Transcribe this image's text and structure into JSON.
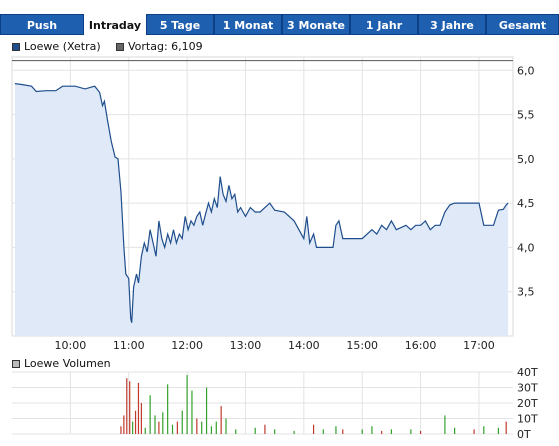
{
  "tabs": [
    {
      "label": "Push",
      "active": false
    },
    {
      "label": "Intraday",
      "active": true
    },
    {
      "label": "5 Tage",
      "active": false
    },
    {
      "label": "1 Monat",
      "active": false
    },
    {
      "label": "3 Monate",
      "active": false
    },
    {
      "label": "1 Jahr",
      "active": false
    },
    {
      "label": "3 Jahre",
      "active": false
    },
    {
      "label": "Gesamt",
      "active": false
    }
  ],
  "legend": {
    "series_label": "Loewe (Xetra)",
    "prev_label": "Vortag: 6,109",
    "volume_label": "Loewe Volumen"
  },
  "colors": {
    "line": "#1f4e8c",
    "area": "#dfe9f7",
    "prev_line": "#555555",
    "grid": "#e3e3e3",
    "vol_up": "#33a02c",
    "vol_down": "#c0392b",
    "tab_bg": "#1f5fb0"
  },
  "chart_data": [
    {
      "type": "area",
      "series": [
        {
          "name": "Loewe (Xetra)",
          "points": [
            [
              "09:03",
              5.85
            ],
            [
              "09:10",
              5.84
            ],
            [
              "09:20",
              5.82
            ],
            [
              "09:25",
              5.76
            ],
            [
              "09:35",
              5.77
            ],
            [
              "09:45",
              5.77
            ],
            [
              "09:52",
              5.82
            ],
            [
              "10:05",
              5.82
            ],
            [
              "10:15",
              5.79
            ],
            [
              "10:25",
              5.82
            ],
            [
              "10:30",
              5.75
            ],
            [
              "10:33",
              5.6
            ],
            [
              "10:35",
              5.65
            ],
            [
              "10:38",
              5.45
            ],
            [
              "10:42",
              5.2
            ],
            [
              "10:46",
              5.02
            ],
            [
              "10:49",
              5.0
            ],
            [
              "10:52",
              4.62
            ],
            [
              "10:55",
              4.0
            ],
            [
              "10:57",
              3.7
            ],
            [
              "11:00",
              3.65
            ],
            [
              "11:02",
              3.2
            ],
            [
              "11:03",
              3.15
            ],
            [
              "11:05",
              3.55
            ],
            [
              "11:08",
              3.7
            ],
            [
              "11:10",
              3.6
            ],
            [
              "11:13",
              3.9
            ],
            [
              "11:16",
              4.05
            ],
            [
              "11:19",
              3.95
            ],
            [
              "11:22",
              4.2
            ],
            [
              "11:25",
              4.05
            ],
            [
              "11:28",
              3.9
            ],
            [
              "11:31",
              4.3
            ],
            [
              "11:34",
              4.1
            ],
            [
              "11:37",
              4.0
            ],
            [
              "11:40",
              4.15
            ],
            [
              "11:43",
              4.05
            ],
            [
              "11:46",
              4.2
            ],
            [
              "11:49",
              4.05
            ],
            [
              "11:52",
              4.15
            ],
            [
              "11:55",
              4.1
            ],
            [
              "11:58",
              4.35
            ],
            [
              "12:01",
              4.2
            ],
            [
              "12:04",
              4.3
            ],
            [
              "12:07",
              4.25
            ],
            [
              "12:10",
              4.35
            ],
            [
              "12:13",
              4.4
            ],
            [
              "12:16",
              4.25
            ],
            [
              "12:19",
              4.38
            ],
            [
              "12:22",
              4.5
            ],
            [
              "12:25",
              4.4
            ],
            [
              "12:28",
              4.55
            ],
            [
              "12:31",
              4.45
            ],
            [
              "12:34",
              4.8
            ],
            [
              "12:37",
              4.6
            ],
            [
              "12:40",
              4.52
            ],
            [
              "12:43",
              4.7
            ],
            [
              "12:46",
              4.55
            ],
            [
              "12:49",
              4.6
            ],
            [
              "12:52",
              4.4
            ],
            [
              "12:55",
              4.45
            ],
            [
              "13:00",
              4.35
            ],
            [
              "13:05",
              4.45
            ],
            [
              "13:10",
              4.4
            ],
            [
              "13:15",
              4.4
            ],
            [
              "13:20",
              4.45
            ],
            [
              "13:25",
              4.5
            ],
            [
              "13:30",
              4.42
            ],
            [
              "13:40",
              4.4
            ],
            [
              "13:50",
              4.3
            ],
            [
              "14:00",
              4.1
            ],
            [
              "14:03",
              4.35
            ],
            [
              "14:06",
              4.05
            ],
            [
              "14:10",
              4.15
            ],
            [
              "14:13",
              4.0
            ],
            [
              "14:20",
              4.0
            ],
            [
              "14:30",
              4.0
            ],
            [
              "14:33",
              4.25
            ],
            [
              "14:36",
              4.3
            ],
            [
              "14:40",
              4.1
            ],
            [
              "14:45",
              4.1
            ],
            [
              "14:52",
              4.1
            ],
            [
              "15:00",
              4.1
            ],
            [
              "15:10",
              4.2
            ],
            [
              "15:15",
              4.15
            ],
            [
              "15:20",
              4.25
            ],
            [
              "15:25",
              4.2
            ],
            [
              "15:30",
              4.3
            ],
            [
              "15:35",
              4.2
            ],
            [
              "15:45",
              4.25
            ],
            [
              "15:50",
              4.2
            ],
            [
              "15:55",
              4.25
            ],
            [
              "16:00",
              4.25
            ],
            [
              "16:05",
              4.3
            ],
            [
              "16:10",
              4.2
            ],
            [
              "16:15",
              4.25
            ],
            [
              "16:20",
              4.25
            ],
            [
              "16:25",
              4.4
            ],
            [
              "16:30",
              4.48
            ],
            [
              "16:35",
              4.5
            ],
            [
              "16:45",
              4.5
            ],
            [
              "16:55",
              4.5
            ],
            [
              "17:00",
              4.5
            ],
            [
              "17:05",
              4.25
            ],
            [
              "17:15",
              4.25
            ],
            [
              "17:20",
              4.42
            ],
            [
              "17:25",
              4.43
            ],
            [
              "17:28",
              4.48
            ],
            [
              "17:30",
              4.5
            ]
          ]
        }
      ],
      "prev_close": 6.109,
      "x_range": [
        "09:00",
        "17:35"
      ],
      "xticks": [
        "10:00",
        "11:00",
        "12:00",
        "13:00",
        "14:00",
        "15:00",
        "16:00",
        "17:00"
      ],
      "ylim": [
        3.0,
        6.15
      ],
      "yticks": [
        6.0,
        5.5,
        5.0,
        4.5,
        4.0,
        3.5
      ],
      "ytick_labels": [
        "6,0",
        "5,5",
        "5,0",
        "4,5",
        "4,0",
        "3,5"
      ],
      "grid": true
    },
    {
      "type": "bar",
      "series": [
        {
          "name": "Loewe Volumen",
          "points": [
            [
              "10:52",
              5,
              "down"
            ],
            [
              "10:55",
              12,
              "down"
            ],
            [
              "10:58",
              36,
              "down"
            ],
            [
              "11:01",
              34,
              "down"
            ],
            [
              "11:04",
              8,
              "up"
            ],
            [
              "11:07",
              15,
              "down"
            ],
            [
              "11:10",
              33,
              "down"
            ],
            [
              "11:13",
              20,
              "down"
            ],
            [
              "11:17",
              4,
              "up"
            ],
            [
              "11:22",
              25,
              "up"
            ],
            [
              "11:27",
              12,
              "up"
            ],
            [
              "11:31",
              8,
              "down"
            ],
            [
              "11:35",
              14,
              "up"
            ],
            [
              "11:40",
              32,
              "up"
            ],
            [
              "11:45",
              6,
              "up"
            ],
            [
              "11:50",
              8,
              "down"
            ],
            [
              "11:55",
              15,
              "up"
            ],
            [
              "12:00",
              38,
              "up"
            ],
            [
              "12:05",
              28,
              "up"
            ],
            [
              "12:10",
              10,
              "down"
            ],
            [
              "12:15",
              8,
              "up"
            ],
            [
              "12:20",
              30,
              "up"
            ],
            [
              "12:25",
              5,
              "up"
            ],
            [
              "12:30",
              8,
              "up"
            ],
            [
              "12:35",
              18,
              "down"
            ],
            [
              "12:40",
              10,
              "up"
            ],
            [
              "12:50",
              3,
              "up"
            ],
            [
              "13:10",
              4,
              "up"
            ],
            [
              "13:20",
              6,
              "down"
            ],
            [
              "13:30",
              3,
              "up"
            ],
            [
              "13:50",
              2,
              "up"
            ],
            [
              "14:10",
              6,
              "down"
            ],
            [
              "14:20",
              3,
              "up"
            ],
            [
              "14:33",
              5,
              "up"
            ],
            [
              "14:40",
              3,
              "down"
            ],
            [
              "15:00",
              3,
              "up"
            ],
            [
              "15:10",
              5,
              "up"
            ],
            [
              "15:20",
              2,
              "down"
            ],
            [
              "15:30",
              3,
              "up"
            ],
            [
              "15:50",
              3,
              "up"
            ],
            [
              "16:00",
              2,
              "down"
            ],
            [
              "16:25",
              12,
              "up"
            ],
            [
              "16:35",
              4,
              "up"
            ],
            [
              "16:55",
              3,
              "down"
            ],
            [
              "17:05",
              5,
              "up"
            ],
            [
              "17:20",
              4,
              "up"
            ],
            [
              "17:28",
              8,
              "down"
            ]
          ]
        }
      ],
      "ylim": [
        0,
        40
      ],
      "yticks": [
        0,
        10,
        20,
        30,
        40
      ],
      "ytick_labels": [
        "0T",
        "10T",
        "20T",
        "30T",
        "40T"
      ],
      "unit": "T"
    }
  ]
}
